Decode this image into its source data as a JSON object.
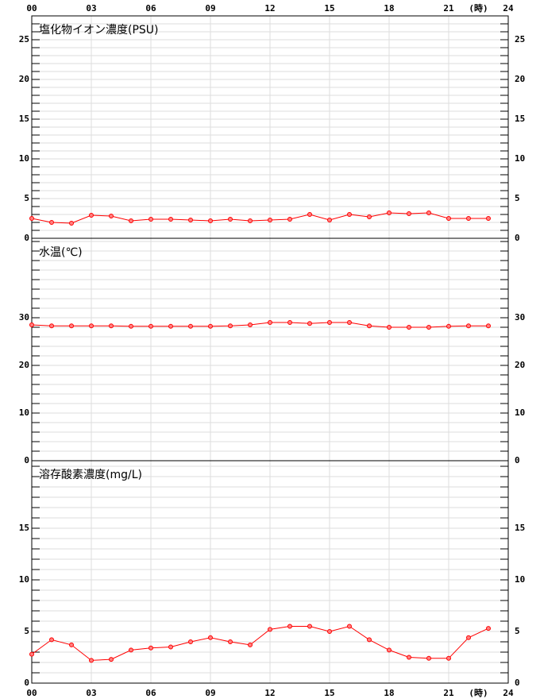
{
  "chart_data": [
    {
      "type": "line",
      "title": "塩化物イオン濃度(PSU)",
      "color": "#ff0000",
      "grid": true,
      "xlim": [
        0,
        24
      ],
      "xticks": [
        {
          "value": 0,
          "label": "00"
        },
        {
          "value": 3,
          "label": "03"
        },
        {
          "value": 6,
          "label": "06"
        },
        {
          "value": 9,
          "label": "09"
        },
        {
          "value": 12,
          "label": "12"
        },
        {
          "value": 15,
          "label": "15"
        },
        {
          "value": 18,
          "label": "18"
        },
        {
          "value": 21,
          "label": "21"
        },
        {
          "value": 24,
          "label": "24"
        }
      ],
      "x_unit": "(時)",
      "ylim": [
        0,
        28
      ],
      "yticks": [
        0,
        5,
        10,
        15,
        20,
        25
      ],
      "x": [
        0,
        1,
        2,
        3,
        4,
        5,
        6,
        7,
        8,
        9,
        10,
        11,
        12,
        13,
        14,
        15,
        16,
        17,
        18,
        19,
        20,
        21,
        22,
        23
      ],
      "values": [
        2.5,
        2.0,
        1.9,
        2.9,
        2.8,
        2.2,
        2.4,
        2.4,
        2.3,
        2.2,
        2.4,
        2.2,
        2.3,
        2.4,
        3.0,
        2.3,
        3.0,
        2.7,
        3.2,
        3.1,
        3.2,
        2.5,
        2.5,
        2.5
      ]
    },
    {
      "type": "line",
      "title": "水温(℃)",
      "color": "#ff0000",
      "grid": true,
      "xlim": [
        0,
        24
      ],
      "ylim": [
        0,
        46.67
      ],
      "yticks": [
        0,
        10,
        20,
        30
      ],
      "x": [
        0,
        1,
        2,
        3,
        4,
        5,
        6,
        7,
        8,
        9,
        10,
        11,
        12,
        13,
        14,
        15,
        16,
        17,
        18,
        19,
        20,
        21,
        22,
        23
      ],
      "values": [
        28.5,
        28.3,
        28.3,
        28.3,
        28.3,
        28.2,
        28.2,
        28.2,
        28.2,
        28.2,
        28.3,
        28.5,
        29.0,
        29.0,
        28.8,
        29.0,
        29.0,
        28.3,
        28.0,
        28.0,
        28.0,
        28.2,
        28.3,
        28.3
      ]
    },
    {
      "type": "line",
      "title": "溶存酸素濃度(mg/L)",
      "color": "#ff0000",
      "grid": true,
      "xlim": [
        0,
        24
      ],
      "xticks": [
        {
          "value": 0,
          "label": "00"
        },
        {
          "value": 3,
          "label": "03"
        },
        {
          "value": 6,
          "label": "06"
        },
        {
          "value": 9,
          "label": "09"
        },
        {
          "value": 12,
          "label": "12"
        },
        {
          "value": 15,
          "label": "15"
        },
        {
          "value": 18,
          "label": "18"
        },
        {
          "value": 21,
          "label": "21"
        },
        {
          "value": 24,
          "label": "24"
        }
      ],
      "x_unit": "(時)",
      "ylim": [
        0,
        21.54
      ],
      "yticks": [
        0,
        5,
        10,
        15
      ],
      "x": [
        0,
        1,
        2,
        3,
        4,
        5,
        6,
        7,
        8,
        9,
        10,
        11,
        12,
        13,
        14,
        15,
        16,
        17,
        18,
        19,
        20,
        21,
        22,
        23
      ],
      "values": [
        2.8,
        4.2,
        3.7,
        2.2,
        2.3,
        3.2,
        3.4,
        3.5,
        4.0,
        4.4,
        4.0,
        3.7,
        5.2,
        5.5,
        5.5,
        5.0,
        5.5,
        4.2,
        3.2,
        2.5,
        2.4,
        2.4,
        4.4,
        5.3
      ]
    }
  ]
}
